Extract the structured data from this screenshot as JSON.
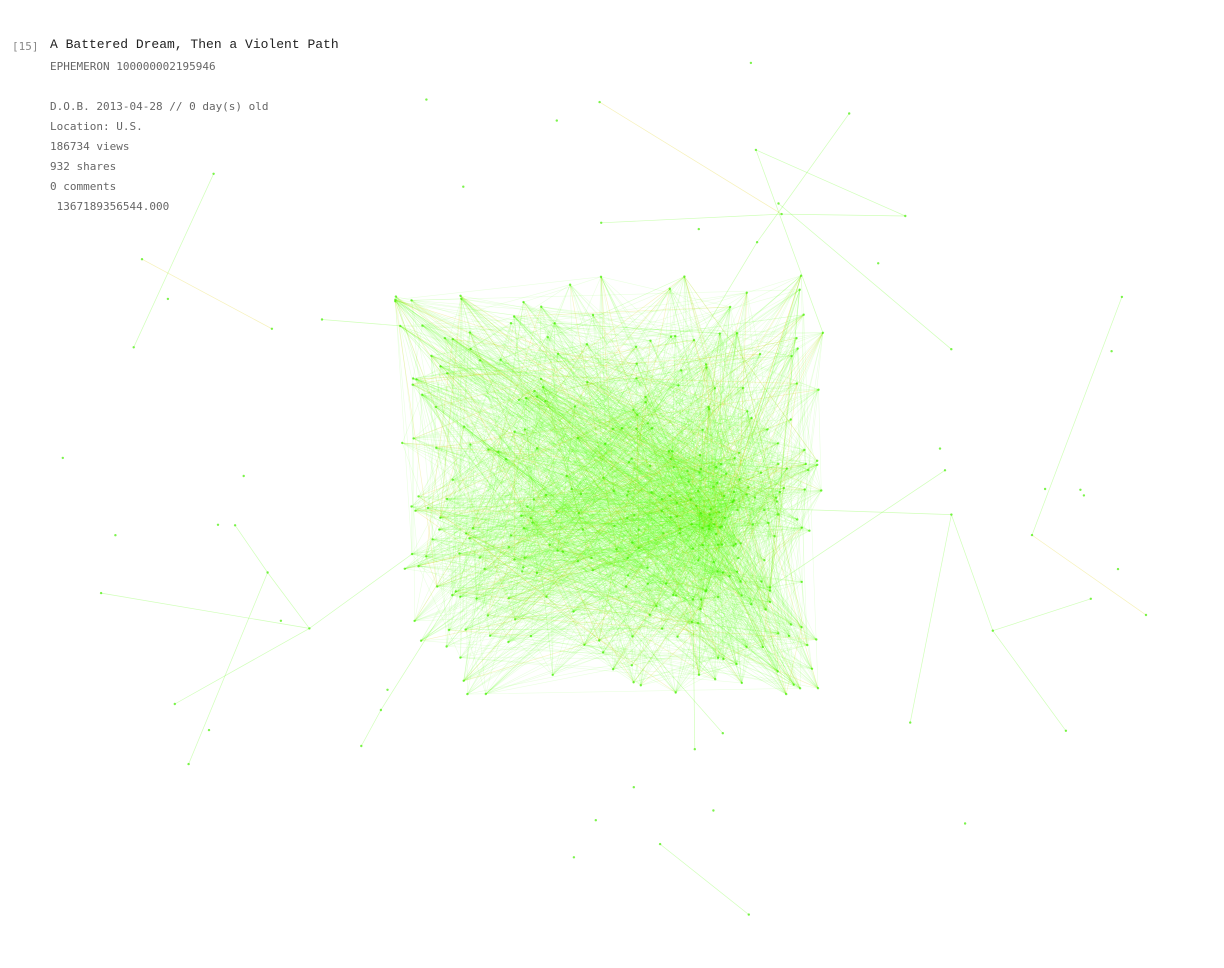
{
  "story": {
    "index": "[15]",
    "title": "A Battered Dream, Then a Violent Path",
    "id_line": "EPHEMERON 100000002195946",
    "dob_line": "D.O.B. 2013-04-28  //  0 day(s) old",
    "location": "Location: U.S.",
    "views": "186734 views",
    "shares": "932 shares",
    "comments": "0 comments",
    "timestamp": " 1367189356544.000"
  },
  "colors": {
    "edge": "#55ff00",
    "edge_warm": "#ddcc00",
    "node": "#44ee00"
  }
}
